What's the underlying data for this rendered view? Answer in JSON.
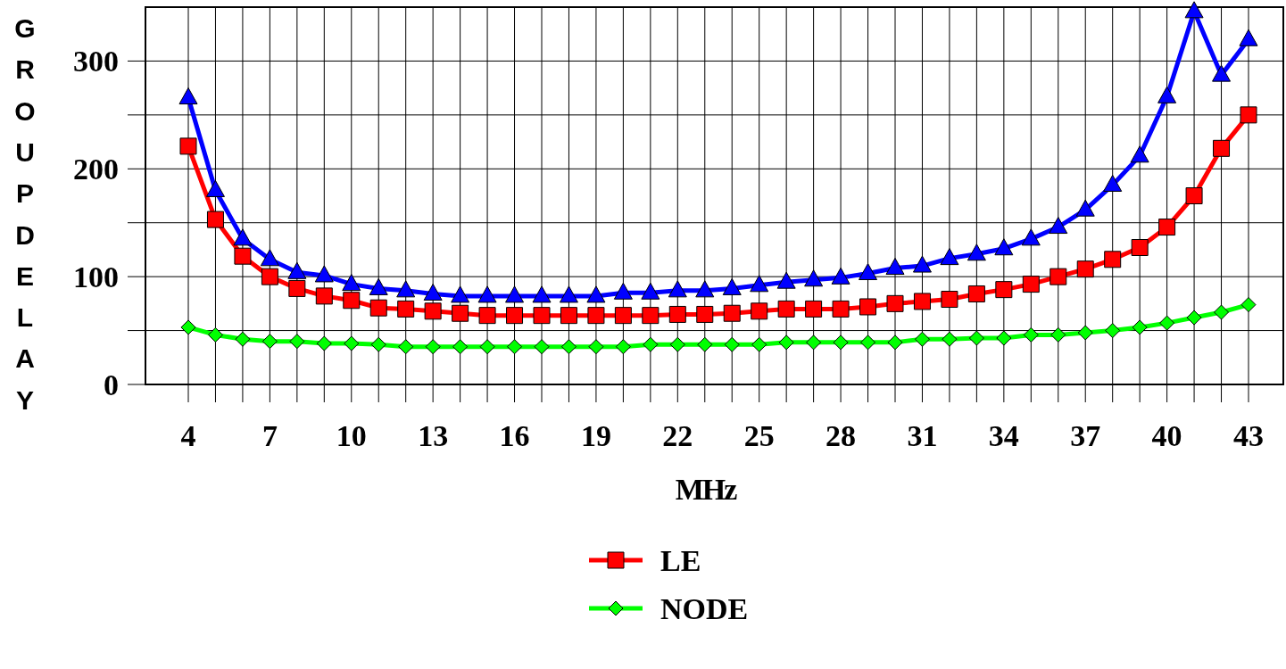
{
  "chart_data": {
    "type": "line",
    "xlabel": "MHz",
    "ylabel": "GROUPDELAY",
    "categories": [
      "4",
      null,
      null,
      "7",
      null,
      null,
      "10",
      null,
      null,
      "13",
      null,
      null,
      "16",
      null,
      null,
      "19",
      null,
      null,
      "22",
      null,
      null,
      "25",
      null,
      null,
      "28",
      null,
      null,
      "31",
      null,
      null,
      "34",
      null,
      null,
      "37",
      null,
      null,
      "40",
      null,
      null,
      "43"
    ],
    "ylim": [
      0,
      350
    ],
    "yticks": [
      0,
      {
        "value": 50,
        "label": null
      },
      100,
      {
        "value": 150,
        "label": null
      },
      200,
      {
        "value": 250,
        "label": null
      },
      300
    ],
    "grid": true,
    "legend": "bottom",
    "line_style": "solid",
    "series": [
      {
        "name": "LE",
        "color": "#ff0000",
        "marker": "square",
        "values": [
          221,
          153,
          119,
          100,
          89,
          82,
          78,
          71,
          70,
          68,
          66,
          64,
          64,
          64,
          64,
          64,
          64,
          64,
          65,
          65,
          66,
          68,
          70,
          70,
          70,
          72,
          75,
          77,
          79,
          84,
          88,
          93,
          100,
          107,
          116,
          127,
          146,
          175,
          219,
          250
        ]
      },
      {
        "name": "NODE",
        "color": "#00ff00",
        "marker": "diamond",
        "values": [
          53,
          46,
          42,
          40,
          40,
          38,
          38,
          37,
          35,
          35,
          35,
          35,
          35,
          35,
          35,
          35,
          35,
          37,
          37,
          37,
          37,
          37,
          39,
          39,
          39,
          39,
          39,
          42,
          42,
          43,
          43,
          46,
          46,
          48,
          50,
          53,
          57,
          62,
          67,
          74
        ]
      },
      {
        "color": "#0000ff",
        "marker": "triangle",
        "values": [
          266,
          180,
          135,
          116,
          104,
          101,
          93,
          89,
          87,
          84,
          82,
          82,
          82,
          82,
          82,
          82,
          85,
          85,
          87,
          87,
          89,
          92,
          95,
          97,
          99,
          103,
          108,
          110,
          117,
          121,
          126,
          135,
          146,
          162,
          185,
          212,
          267,
          346,
          287,
          320
        ]
      }
    ]
  }
}
